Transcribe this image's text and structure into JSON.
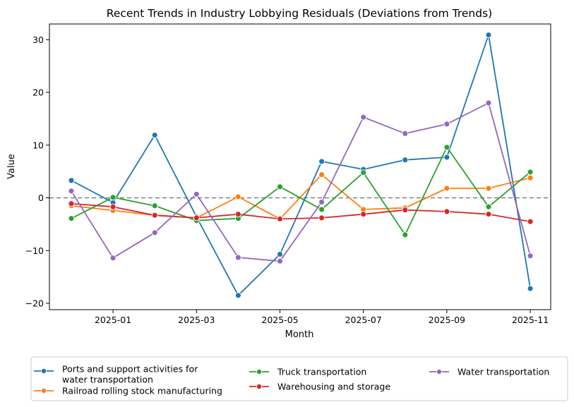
{
  "chart_data": {
    "type": "line",
    "title": "Recent Trends in Industry Lobbying Residuals (Deviations from Trends)",
    "xlabel": "Month",
    "ylabel": "Value",
    "x": [
      "2024-12",
      "2025-01",
      "2025-02",
      "2025-03",
      "2025-04",
      "2025-05",
      "2025-06",
      "2025-07",
      "2025-08",
      "2025-09",
      "2025-10",
      "2025-11"
    ],
    "xticks": [
      "2025-01",
      "2025-03",
      "2025-05",
      "2025-07",
      "2025-09",
      "2025-11"
    ],
    "yticks": [
      "−20",
      "−10",
      "0",
      "10",
      "20",
      "30"
    ],
    "ylim": [
      -21,
      33
    ],
    "reference_line": 0,
    "grid": false,
    "legend_position": "bottom",
    "series": [
      {
        "name": "Ports and support activities for water transportation",
        "legend_lines": [
          "Ports and support activities for",
          "water transportation"
        ],
        "color": "#1f77b4",
        "values": [
          3.3,
          -0.9,
          11.9,
          -3.6,
          -18.5,
          -10.7,
          6.9,
          5.4,
          7.2,
          7.7,
          30.9,
          -17.2
        ]
      },
      {
        "name": "Railroad rolling stock manufacturing",
        "legend_lines": [
          "Railroad rolling stock manufacturing"
        ],
        "color": "#ff7f0e",
        "values": [
          -1.5,
          -2.4,
          -3.3,
          -3.8,
          0.2,
          -4.0,
          4.4,
          -2.2,
          -1.9,
          1.8,
          1.8,
          3.8
        ]
      },
      {
        "name": "Truck transportation",
        "legend_lines": [
          "Truck transportation"
        ],
        "color": "#2ca02c",
        "values": [
          -3.9,
          0.1,
          -1.5,
          -4.3,
          -3.9,
          2.1,
          -2.2,
          4.8,
          -7.0,
          9.6,
          -1.7,
          4.9
        ]
      },
      {
        "name": "Warehousing and storage",
        "legend_lines": [
          "Warehousing and storage"
        ],
        "color": "#d62728",
        "values": [
          -1.1,
          -1.7,
          -3.3,
          -3.8,
          -3.1,
          -4.0,
          -3.8,
          -3.1,
          -2.3,
          -2.6,
          -3.1,
          -4.5
        ]
      },
      {
        "name": "Water transportation",
        "legend_lines": [
          "Water transportation"
        ],
        "color": "#9467bd",
        "values": [
          1.3,
          -11.4,
          -6.6,
          0.7,
          -11.3,
          -12.0,
          -0.8,
          15.3,
          12.2,
          14.0,
          18.0,
          -11.0
        ]
      }
    ]
  }
}
